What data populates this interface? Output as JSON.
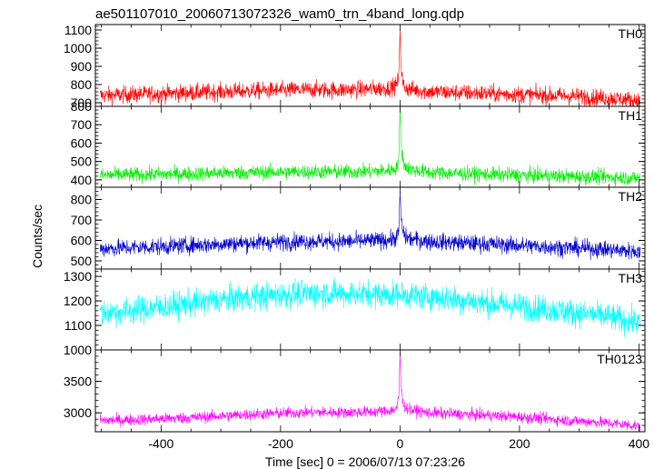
{
  "chart_data": {
    "type": "line",
    "title": "ae501107010_20060713072326_wam0_trn_4band_long.qdp",
    "xlabel": "Time [sec] 0 = 2006/07/13 07:23:26",
    "ylabel": "Counts/sec",
    "xlim": [
      -510,
      410
    ],
    "xticks": [
      -400,
      -200,
      0,
      200,
      400
    ],
    "grid": false,
    "panels": [
      {
        "name": "TH0",
        "color": "#ff0000",
        "ylim": [
          680,
          1130
        ],
        "yticks": [
          700,
          800,
          900,
          1000,
          1100
        ],
        "x": [
          -500,
          -450,
          -400,
          -350,
          -300,
          -250,
          -200,
          -150,
          -100,
          -50,
          -20,
          -10,
          -5,
          -2,
          0,
          2,
          5,
          10,
          20,
          50,
          100,
          150,
          200,
          250,
          300,
          350,
          400
        ],
        "y": [
          740,
          745,
          750,
          755,
          760,
          765,
          768,
          772,
          770,
          775,
          780,
          790,
          800,
          850,
          1110,
          880,
          800,
          780,
          772,
          760,
          755,
          750,
          745,
          740,
          735,
          725,
          712
        ]
      },
      {
        "name": "TH1",
        "color": "#00ee00",
        "ylim": [
          360,
          800
        ],
        "yticks": [
          400,
          500,
          600,
          700,
          800
        ],
        "x": [
          -500,
          -450,
          -400,
          -350,
          -300,
          -250,
          -200,
          -150,
          -100,
          -50,
          -20,
          -10,
          -5,
          -2,
          0,
          2,
          5,
          10,
          20,
          50,
          100,
          150,
          200,
          250,
          300,
          350,
          400
        ],
        "y": [
          425,
          428,
          430,
          433,
          436,
          440,
          442,
          445,
          443,
          446,
          450,
          458,
          470,
          520,
          780,
          600,
          500,
          470,
          455,
          440,
          435,
          430,
          426,
          422,
          418,
          415,
          410
        ]
      },
      {
        "name": "TH2",
        "color": "#0000cc",
        "ylim": [
          460,
          860
        ],
        "yticks": [
          500,
          600,
          700,
          800
        ],
        "x": [
          -500,
          -450,
          -400,
          -350,
          -300,
          -250,
          -200,
          -150,
          -100,
          -50,
          -20,
          -10,
          -5,
          -2,
          0,
          2,
          5,
          10,
          20,
          50,
          100,
          150,
          200,
          250,
          300,
          350,
          400
        ],
        "y": [
          560,
          565,
          570,
          576,
          582,
          588,
          592,
          596,
          594,
          598,
          602,
          608,
          615,
          650,
          840,
          700,
          640,
          615,
          605,
          595,
          588,
          582,
          575,
          568,
          562,
          555,
          545
        ]
      },
      {
        "name": "TH3",
        "color": "#00ffff",
        "ylim": [
          1000,
          1330
        ],
        "yticks": [
          1000,
          1100,
          1200,
          1300
        ],
        "x": [
          -500,
          -450,
          -400,
          -350,
          -300,
          -250,
          -200,
          -150,
          -100,
          -50,
          0,
          50,
          100,
          150,
          200,
          250,
          300,
          350,
          400
        ],
        "y": [
          1150,
          1160,
          1175,
          1190,
          1205,
          1215,
          1225,
          1232,
          1230,
          1228,
          1225,
          1218,
          1205,
          1190,
          1178,
          1165,
          1150,
          1135,
          1110
        ]
      },
      {
        "name": "TH0123",
        "color": "#ff00ff",
        "ylim": [
          2700,
          4000
        ],
        "yticks": [
          3000,
          3500
        ],
        "x": [
          -500,
          -450,
          -400,
          -350,
          -300,
          -250,
          -200,
          -150,
          -100,
          -50,
          -20,
          -10,
          -5,
          -2,
          0,
          2,
          5,
          10,
          20,
          50,
          100,
          150,
          200,
          250,
          300,
          350,
          400
        ],
        "y": [
          2880,
          2890,
          2905,
          2925,
          2950,
          2975,
          2995,
          3010,
          3005,
          3015,
          3030,
          3050,
          3080,
          3250,
          3950,
          3400,
          3150,
          3080,
          3040,
          3000,
          2980,
          2960,
          2935,
          2900,
          2870,
          2840,
          2790
        ]
      }
    ]
  }
}
